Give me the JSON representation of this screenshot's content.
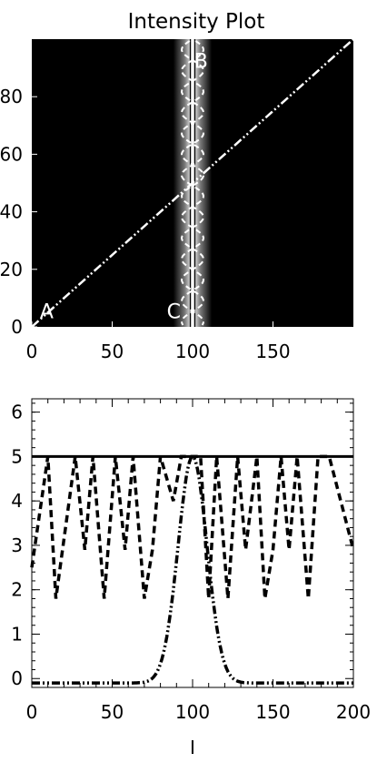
{
  "chart_data": [
    {
      "type": "heatmap",
      "title": "Intensity Plot",
      "xlabel": "",
      "ylabel": "",
      "xlim": [
        0,
        200
      ],
      "ylim": [
        0,
        100
      ],
      "x_ticks": [
        "0",
        "50",
        "100",
        "150"
      ],
      "y_ticks": [
        "0",
        "20",
        "40",
        "60",
        "80"
      ],
      "background_color": "#000000",
      "band": {
        "center_x": 100,
        "half_width": 12,
        "color": "#ffffff"
      },
      "vertical_line_x": 100,
      "diagonal_line": {
        "from": [
          0,
          0
        ],
        "to": [
          200,
          100
        ],
        "style": "dash-dot-dot"
      },
      "annotations": [
        {
          "text": "A",
          "x": 5,
          "y": 3
        },
        {
          "text": "B",
          "x": 101,
          "y": 90
        },
        {
          "text": "C",
          "x": 84,
          "y": 3
        }
      ]
    },
    {
      "type": "line",
      "xlabel": "I",
      "ylabel": "",
      "xlim": [
        0,
        200
      ],
      "ylim": [
        -0.2,
        6.3
      ],
      "x_ticks": [
        "0",
        "50",
        "100",
        "150",
        "200"
      ],
      "y_ticks": [
        "0",
        "1",
        "2",
        "3",
        "4",
        "5",
        "6"
      ],
      "series": [
        {
          "style": "solid",
          "x": [
            0,
            200
          ],
          "y": [
            5,
            5
          ]
        },
        {
          "style": "dashed",
          "x": [
            0,
            10,
            15,
            27,
            33,
            38,
            45,
            52,
            58,
            63,
            70,
            75,
            80,
            88,
            93,
            98,
            105,
            110,
            115,
            122,
            128,
            133,
            140,
            145,
            150,
            155,
            160,
            165,
            172,
            178,
            185,
            200
          ],
          "y": [
            2.5,
            5,
            1.8,
            5,
            2.9,
            5,
            1.8,
            5,
            2.9,
            5,
            1.8,
            2.9,
            5,
            4.0,
            5,
            5,
            5,
            1.8,
            5,
            1.8,
            5,
            2.9,
            5,
            1.8,
            2.9,
            5,
            2.9,
            5,
            1.8,
            5,
            5,
            2.9
          ]
        },
        {
          "style": "dash-dot-dot",
          "gaussian": {
            "center": 100,
            "sigma": 9,
            "amplitude": 5.0,
            "baseline": -0.1
          }
        }
      ]
    }
  ]
}
